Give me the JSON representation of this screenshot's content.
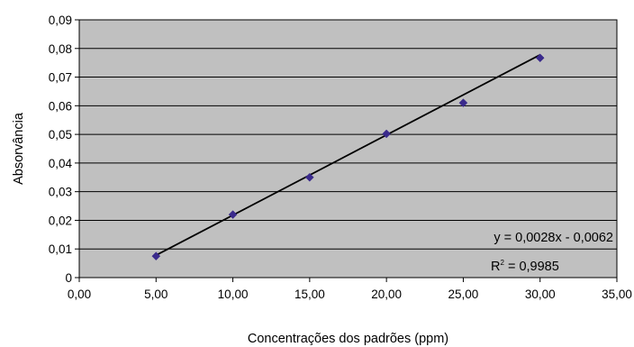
{
  "chart_data": {
    "type": "scatter",
    "title": "",
    "xlabel": "Concentrações dos padrões (ppm)",
    "ylabel": "Absorvância",
    "xlim": [
      0,
      35
    ],
    "ylim": [
      0,
      0.09
    ],
    "x_ticks": [
      0,
      5,
      10,
      15,
      20,
      25,
      30,
      35
    ],
    "x_tick_labels": [
      "0,00",
      "5,00",
      "10,00",
      "15,00",
      "20,00",
      "25,00",
      "30,00",
      "35,00"
    ],
    "y_ticks": [
      0,
      0.01,
      0.02,
      0.03,
      0.04,
      0.05,
      0.06,
      0.07,
      0.08,
      0.09
    ],
    "y_tick_labels": [
      "0",
      "0,01",
      "0,02",
      "0,03",
      "0,04",
      "0,05",
      "0,06",
      "0,07",
      "0,08",
      "0,09"
    ],
    "grid": "horizontal",
    "legend": "none",
    "plot_background": "#c0c0c0",
    "point_color": "#3a2a8c",
    "line_color": "#000000",
    "series": [
      {
        "x": [
          5,
          10,
          15,
          20,
          25,
          30
        ],
        "y": [
          0.0075,
          0.022,
          0.035,
          0.0502,
          0.061,
          0.0767
        ]
      }
    ],
    "trendline": {
      "slope": 0.0028,
      "intercept": -0.0062,
      "x_range": [
        5,
        30
      ],
      "equation_text": "y = 0,0028x - 0,0062",
      "r2_label": "R",
      "r2_exponent": "2",
      "r2_value": " = 0,9985"
    }
  }
}
